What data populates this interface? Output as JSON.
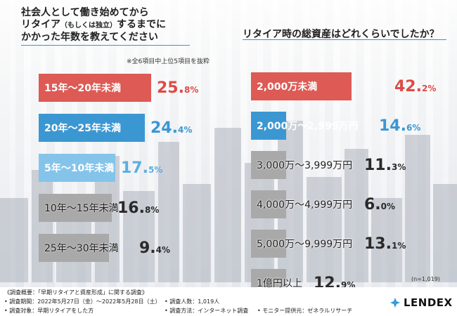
{
  "left_chart": {
    "title_lines": [
      "社会人として働き始めてから",
      "リタイア",
      "（もしくは独立）",
      "するまでに",
      "かかった年数を教えてください"
    ],
    "note": "※全6項目中上位5項目を抜粋",
    "colors": {
      "red": "#dd5a55",
      "blue1": "#3b97d2",
      "blue2": "#84c4ea",
      "gray": "#a9a9a9"
    }
  },
  "right_chart": {
    "title": "リタイア時の総資産はどれくらいでしたか？",
    "sample_size": "(n=1,019)"
  },
  "chart_data": [
    {
      "type": "bar",
      "orientation": "horizontal",
      "title": "社会人として働き始めてからリタイア（もしくは独立）するまでにかかった年数を教えてください",
      "categories": [
        "15年〜20年未満",
        "20年〜25年未満",
        "5年〜10年未満",
        "10年〜15年未満",
        "25年〜30年未満"
      ],
      "values": [
        25.8,
        24.4,
        17.5,
        16.8,
        9.4
      ],
      "value_whole": [
        "25.",
        "24.",
        "17.",
        "16.",
        "9."
      ],
      "value_frac": [
        "8%",
        "4%",
        "5%",
        "8%",
        "4%"
      ],
      "xlim": [
        0,
        30
      ]
    },
    {
      "type": "bar",
      "orientation": "horizontal",
      "title": "リタイア時の総資産はどれくらいでしたか？",
      "categories": [
        "2,000万未満",
        "2,000万〜2,999万円",
        "3,000万〜3,999万円",
        "4,000万〜4,999万円",
        "5,000万〜9,999万円",
        "1億円以上"
      ],
      "values": [
        42.2,
        14.6,
        11.3,
        6.0,
        13.1,
        12.9
      ],
      "value_whole": [
        "42.",
        "14.",
        "11.",
        "6.",
        "13.",
        "12."
      ],
      "value_frac": [
        "2%",
        "6%",
        "3%",
        "0%",
        "1%",
        "9%"
      ],
      "xlim": [
        0,
        50
      ]
    }
  ],
  "footer": {
    "survey_title": "《調査概要：「早期リタイアと資産形成」に関する調査》",
    "period": "• 調査期間：2022年5月27日（金）〜2022年5月28日（土）",
    "target": "• 調査対象：早期リタイアをした方",
    "respondents": "• 調査人数：1,019人",
    "method": "• 調査方法：インターネット調査",
    "provider": "• モニター提供元：ゼネラルリサーチ",
    "logo_text": "LENDEX"
  }
}
